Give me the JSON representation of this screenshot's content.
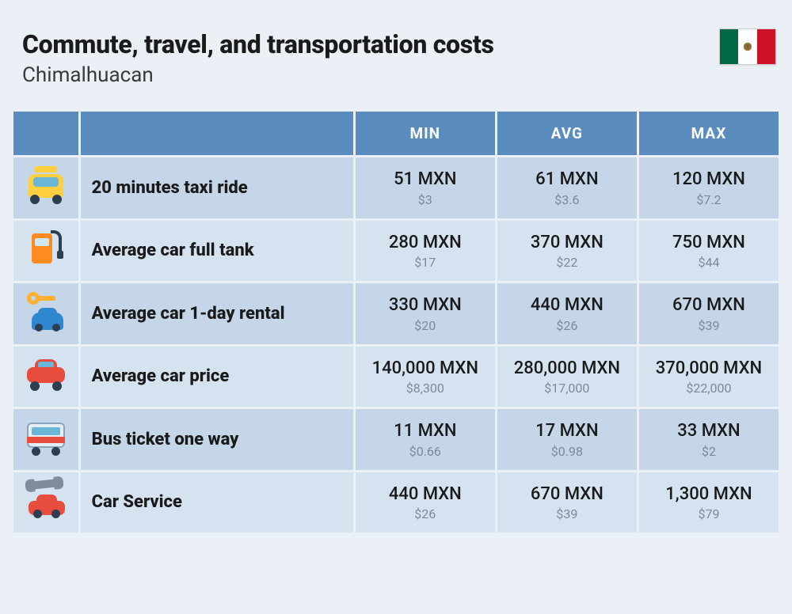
{
  "header": {
    "title": "Commute, travel, and transportation costs",
    "subtitle": "Chimalhuacan",
    "flag_colors": {
      "left": "#006847",
      "middle": "#ffffff",
      "right": "#ce1126"
    }
  },
  "columns": {
    "min": "MIN",
    "avg": "AVG",
    "max": "MAX"
  },
  "rows": [
    {
      "icon": "taxi-icon",
      "label": "20 minutes taxi ride",
      "min": {
        "mxn": "51 MXN",
        "usd": "$3"
      },
      "avg": {
        "mxn": "61 MXN",
        "usd": "$3.6"
      },
      "max": {
        "mxn": "120 MXN",
        "usd": "$7.2"
      }
    },
    {
      "icon": "fuel-pump-icon",
      "label": "Average car full tank",
      "min": {
        "mxn": "280 MXN",
        "usd": "$17"
      },
      "avg": {
        "mxn": "370 MXN",
        "usd": "$22"
      },
      "max": {
        "mxn": "750 MXN",
        "usd": "$44"
      }
    },
    {
      "icon": "car-key-icon",
      "label": "Average car 1-day rental",
      "min": {
        "mxn": "330 MXN",
        "usd": "$20"
      },
      "avg": {
        "mxn": "440 MXN",
        "usd": "$26"
      },
      "max": {
        "mxn": "670 MXN",
        "usd": "$39"
      }
    },
    {
      "icon": "car-icon",
      "label": "Average car price",
      "min": {
        "mxn": "140,000 MXN",
        "usd": "$8,300"
      },
      "avg": {
        "mxn": "280,000 MXN",
        "usd": "$17,000"
      },
      "max": {
        "mxn": "370,000 MXN",
        "usd": "$22,000"
      }
    },
    {
      "icon": "bus-icon",
      "label": "Bus ticket one way",
      "min": {
        "mxn": "11 MXN",
        "usd": "$0.66"
      },
      "avg": {
        "mxn": "17 MXN",
        "usd": "$0.98"
      },
      "max": {
        "mxn": "33 MXN",
        "usd": "$2"
      }
    },
    {
      "icon": "car-service-icon",
      "label": "Car Service",
      "min": {
        "mxn": "440 MXN",
        "usd": "$26"
      },
      "avg": {
        "mxn": "670 MXN",
        "usd": "$39"
      },
      "max": {
        "mxn": "1,300 MXN",
        "usd": "$79"
      }
    }
  ],
  "styling": {
    "type": "table",
    "page_background": "#eaf0f6",
    "header_bg": "#5b8cbf",
    "header_text_color": "#ffffff",
    "row_odd_bg": "#c5d6e8",
    "row_even_bg": "#d5e2ef",
    "mxn_text_color": "#1a1a1a",
    "usd_text_color": "#7a8a9a",
    "title_fontsize": 32,
    "subtitle_fontsize": 26,
    "header_fontsize": 19,
    "label_fontsize": 22,
    "mxn_fontsize": 22,
    "usd_fontsize": 16,
    "cell_spacing": 3,
    "column_widths": {
      "icon": 82,
      "label": 350,
      "value": 178
    }
  }
}
